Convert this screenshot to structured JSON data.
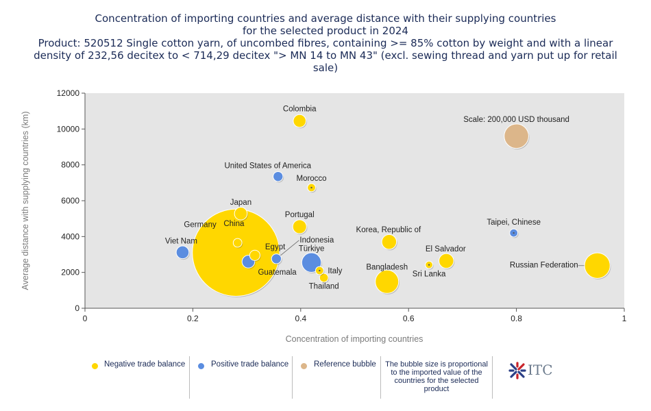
{
  "title": {
    "line1": "Concentration of importing countries and average distance with their supplying countries",
    "line2": "for the selected product in 2024",
    "line3": "Product: 520512 Single cotton yarn, of uncombed fibres, containing >= 85% cotton by weight and with a linear",
    "line4": "density of 232,56 decitex to < 714,29 decitex \"> MN 14 to MN 43\" (excl. sewing thread and yarn put up for retail",
    "line5": "sale)"
  },
  "colors": {
    "negative": "#ffd700",
    "positive": "#5b8de0",
    "reference": "#dcb68a",
    "plot_bg": "#e5e5e5"
  },
  "chart_data": {
    "type": "scatter",
    "xlabel": "Concentration of importing countries",
    "ylabel": "Average distance with supplying countries (km)",
    "xlim": [
      0,
      1
    ],
    "ylim": [
      0,
      12000
    ],
    "x_ticks": [
      0,
      0.2,
      0.4,
      0.6,
      0.8,
      1
    ],
    "x_tick_labels": [
      "0",
      "0.2",
      "0.4",
      "0.6",
      "0.8",
      "1"
    ],
    "y_ticks": [
      0,
      2000,
      4000,
      6000,
      8000,
      10000,
      12000
    ],
    "y_tick_labels": [
      "0",
      "2000",
      "4000",
      "6000",
      "8000",
      "10000",
      "12000"
    ],
    "grid": false,
    "points": [
      {
        "name": "Colombia",
        "x": 0.398,
        "y": 10450,
        "size": 30,
        "balance": "negative"
      },
      {
        "name": "United States of America",
        "x": 0.358,
        "y": 7350,
        "size": 18,
        "balance": "positive"
      },
      {
        "name": "Morocco",
        "x": 0.42,
        "y": 6730,
        "size": 12,
        "balance": "negative"
      },
      {
        "name": "Japan",
        "x": 0.289,
        "y": 5280,
        "size": 30,
        "balance": "negative"
      },
      {
        "name": "Portugal",
        "x": 0.398,
        "y": 4550,
        "size": 35,
        "balance": "negative"
      },
      {
        "name": "Korea, Republic of",
        "x": 0.564,
        "y": 3700,
        "size": 40,
        "balance": "negative"
      },
      {
        "name": "Taipei, Chinese",
        "x": 0.795,
        "y": 4200,
        "size": 12,
        "balance": "positive"
      },
      {
        "name": "Viet Nam",
        "x": 0.181,
        "y": 3120,
        "size": 30,
        "balance": "positive"
      },
      {
        "name": "China",
        "x": 0.28,
        "y": 3100,
        "size": 1400,
        "balance": "negative"
      },
      {
        "name": "Germany",
        "x": 0.283,
        "y": 3650,
        "size": 14,
        "balance": "negative"
      },
      {
        "name": "Egypt",
        "x": 0.315,
        "y": 2950,
        "size": 20,
        "balance": "negative"
      },
      {
        "name": "Guatemala",
        "x": 0.303,
        "y": 2600,
        "size": 30,
        "balance": "positive"
      },
      {
        "name": "Indonesia",
        "x": 0.355,
        "y": 2760,
        "size": 18,
        "balance": "positive"
      },
      {
        "name": "Türkiye",
        "x": 0.42,
        "y": 2550,
        "size": 70,
        "balance": "positive"
      },
      {
        "name": "Italy",
        "x": 0.435,
        "y": 2100,
        "size": 12,
        "balance": "negative"
      },
      {
        "name": "Thailand",
        "x": 0.443,
        "y": 1700,
        "size": 14,
        "balance": "negative"
      },
      {
        "name": "Bangladesh",
        "x": 0.56,
        "y": 1480,
        "size": 100,
        "balance": "negative"
      },
      {
        "name": "Sri Lanka",
        "x": 0.638,
        "y": 2420,
        "size": 10,
        "balance": "negative"
      },
      {
        "name": "El Salvador",
        "x": 0.67,
        "y": 2640,
        "size": 40,
        "balance": "negative"
      },
      {
        "name": "Russian Federation",
        "x": 0.95,
        "y": 2380,
        "size": 120,
        "balance": "negative"
      }
    ],
    "reference_bubble": {
      "label": "Scale: 200,000 USD thousand",
      "x": 0.8,
      "y": 9600,
      "size": 110
    }
  },
  "legend": {
    "negative_label": "Negative trade balance",
    "positive_label": "Positive trade balance",
    "reference_label": "Reference bubble",
    "note": "The bubble size is proportional to the imported value of the countries for the selected product"
  },
  "logo": {
    "text": "ITC",
    "icon": "itc-logo-icon"
  }
}
